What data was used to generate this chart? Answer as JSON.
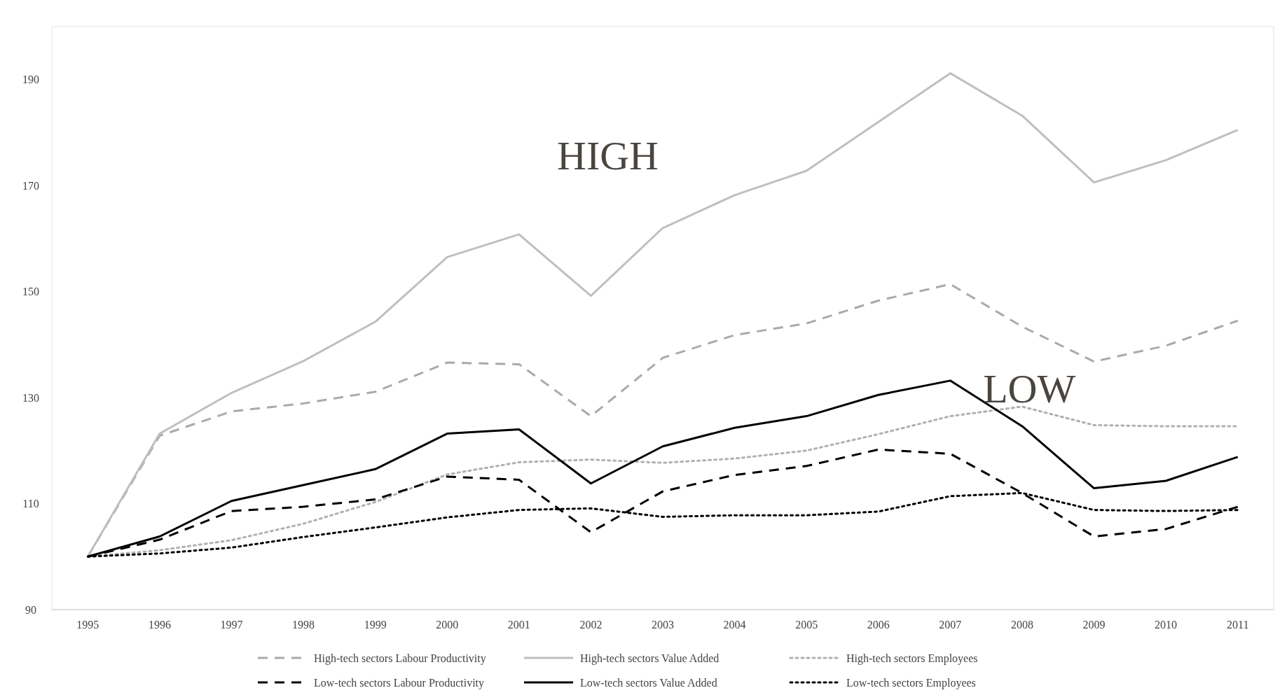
{
  "chart_data": {
    "type": "line",
    "x": [
      1995,
      1996,
      1997,
      1998,
      1999,
      2000,
      2001,
      2002,
      2003,
      2004,
      2005,
      2006,
      2007,
      2008,
      2009,
      2010,
      2011
    ],
    "xlim": [
      1994.5,
      2011.5
    ],
    "xticks": [
      1995,
      1996,
      1997,
      1998,
      1999,
      2000,
      2001,
      2002,
      2003,
      2004,
      2005,
      2006,
      2007,
      2008,
      2009,
      2010,
      2011
    ],
    "ylim": [
      90,
      200
    ],
    "yticks": [
      90,
      110,
      130,
      150,
      170,
      190
    ],
    "grid": false,
    "legend": "bottom",
    "series": [
      {
        "name": "High-tech sectors Labour Productivity",
        "color": "#aaaaaa",
        "line_style": "dashed",
        "values": [
          100,
          122.8,
          127.4,
          128.9,
          131.1,
          136.6,
          136.3,
          126.5,
          137.5,
          141.8,
          144,
          148.3,
          151.4,
          143.4,
          136.8,
          139.8,
          144.5
        ]
      },
      {
        "name": "High-tech sectors Value Added",
        "color": "#bfbfbf",
        "line_style": "solid",
        "values": [
          100,
          123.2,
          130.9,
          136.9,
          144.3,
          156.5,
          160.8,
          149.2,
          162,
          168.2,
          172.8,
          182,
          191.2,
          183.2,
          170.6,
          174.8,
          180.5
        ]
      },
      {
        "name": "High-tech sectors Employees",
        "color": "#b0b0b0",
        "line_style": "dotted",
        "values": [
          100,
          101.2,
          103.1,
          106.2,
          110.3,
          115.5,
          117.8,
          118.3,
          117.7,
          118.5,
          120,
          123.1,
          126.5,
          128.3,
          124.8,
          124.6,
          124.6
        ]
      },
      {
        "name": "Low-tech sectors Labour Productivity",
        "color": "#000000",
        "line_style": "dashed",
        "values": [
          100,
          103.2,
          108.6,
          109.4,
          110.8,
          115.1,
          114.5,
          104.6,
          112.3,
          115.4,
          117.1,
          120.2,
          119.4,
          112,
          103.8,
          105.2,
          109.4
        ]
      },
      {
        "name": "Low-tech sectors Value Added",
        "color": "#000000",
        "line_style": "solid",
        "values": [
          100,
          103.8,
          110.5,
          113.5,
          116.5,
          123.2,
          124,
          113.8,
          120.8,
          124.3,
          126.5,
          130.5,
          133.2,
          124.6,
          112.9,
          114.3,
          118.8
        ]
      },
      {
        "name": "Low-tech sectors Employees",
        "color": "#000000",
        "line_style": "dotted",
        "values": [
          100,
          100.6,
          101.7,
          103.7,
          105.5,
          107.4,
          108.8,
          109.1,
          107.5,
          107.8,
          107.8,
          108.5,
          111.4,
          112,
          108.8,
          108.6,
          108.8
        ]
      }
    ],
    "annotations": [
      "HIGH",
      "LOW"
    ]
  }
}
